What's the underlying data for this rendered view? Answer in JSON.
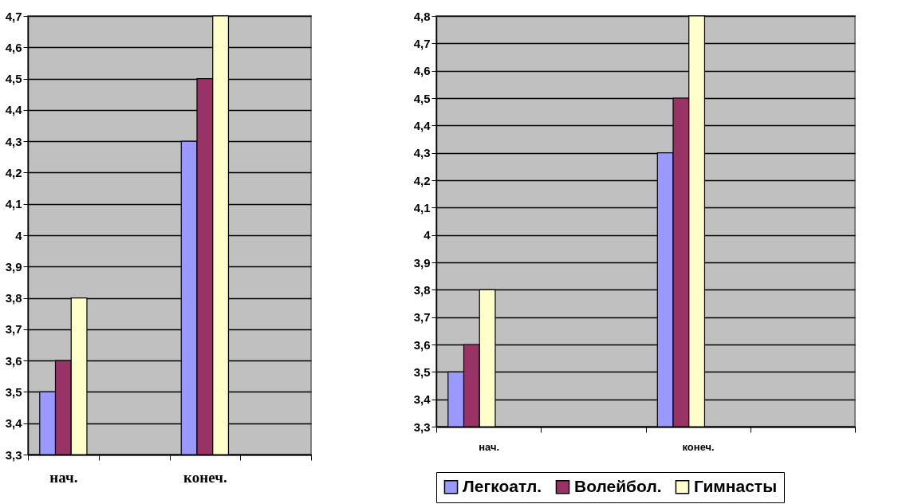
{
  "chart_data": [
    {
      "type": "bar",
      "categories": [
        "нач.",
        null,
        "конеч.",
        null
      ],
      "series": [
        {
          "color": "#9999ff",
          "values": [
            3.5,
            null,
            4.3,
            null
          ]
        },
        {
          "color": "#993366",
          "values": [
            3.6,
            null,
            4.5,
            null
          ]
        },
        {
          "color": "#ffffcc",
          "values": [
            3.8,
            null,
            4.7,
            null
          ]
        }
      ],
      "ylim": [
        3.3,
        4.7
      ],
      "yticks": [
        {
          "value": 3.3,
          "label": "3,3"
        },
        {
          "value": 3.4,
          "label": "3,4"
        },
        {
          "value": 3.5,
          "label": "3,5"
        },
        {
          "value": 3.6,
          "label": "3,6"
        },
        {
          "value": 3.7,
          "label": "3,7"
        },
        {
          "value": 3.8,
          "label": "3,8"
        },
        {
          "value": 3.9,
          "label": "3,9"
        },
        4,
        {
          "value": 4.1,
          "label": "4,1"
        },
        {
          "value": 4.2,
          "label": "4,2"
        },
        {
          "value": 4.3,
          "label": "4,3"
        },
        {
          "value": 4.4,
          "label": "4,4"
        },
        {
          "value": 4.5,
          "label": "4,5"
        },
        {
          "value": 4.6,
          "label": "4,6"
        },
        {
          "value": 4.7,
          "label": "4,7"
        }
      ],
      "grid": "y"
    },
    {
      "type": "bar",
      "categories": [
        "нач.",
        null,
        "конеч.",
        null
      ],
      "series": [
        {
          "name": "Легкоатл.",
          "color": "#9999ff",
          "values": [
            3.5,
            null,
            4.3,
            null
          ]
        },
        {
          "name": "Волейбол.",
          "color": "#993366",
          "values": [
            3.6,
            null,
            4.5,
            null
          ]
        },
        {
          "name": "Гимнасты",
          "color": "#ffffcc",
          "values": [
            3.8,
            null,
            4.8,
            null
          ]
        }
      ],
      "ylim": [
        3.3,
        4.8
      ],
      "yticks": [
        {
          "value": 3.3,
          "label": "3,3"
        },
        {
          "value": 3.4,
          "label": "3,4"
        },
        {
          "value": 3.5,
          "label": "3,5"
        },
        {
          "value": 3.6,
          "label": "3,6"
        },
        {
          "value": 3.7,
          "label": "3,7"
        },
        {
          "value": 3.8,
          "label": "3,8"
        },
        {
          "value": 3.9,
          "label": "3,9"
        },
        4,
        {
          "value": 4.1,
          "label": "4,1"
        },
        {
          "value": 4.2,
          "label": "4,2"
        },
        {
          "value": 4.3,
          "label": "4,3"
        },
        {
          "value": 4.4,
          "label": "4,4"
        },
        {
          "value": 4.5,
          "label": "4,5"
        },
        {
          "value": 4.6,
          "label": "4,6"
        },
        {
          "value": 4.7,
          "label": "4,7"
        },
        {
          "value": 4.8,
          "label": "4,8"
        }
      ],
      "grid": "y",
      "legend": "bottom"
    }
  ]
}
